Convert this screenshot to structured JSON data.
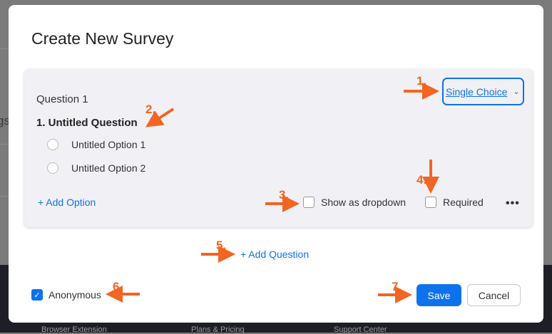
{
  "background": {
    "partial_text": "gs",
    "footer_links": [
      "Browser Extension",
      "Plans & Pricing",
      "Support Center"
    ]
  },
  "modal": {
    "title": "Create New Survey",
    "question": {
      "label": "Question 1",
      "title": "1. Untitled Question",
      "type": "Single Choice",
      "options": [
        "Untitled Option 1",
        "Untitled Option 2"
      ],
      "add_option": "+ Add Option",
      "show_as_dropdown": {
        "label": "Show as dropdown",
        "checked": false
      },
      "required": {
        "label": "Required",
        "checked": false
      },
      "more": "•••"
    },
    "add_question": "+ Add Question",
    "anonymous": {
      "label": "Anonymous",
      "checked": true
    },
    "save": "Save",
    "cancel": "Cancel"
  },
  "annotations": [
    "1.",
    "2.",
    "3.",
    "4.",
    "5.",
    "6.",
    "7."
  ],
  "colors": {
    "accent": "#0e72ed",
    "annotation": "#f26522",
    "overlay": "#7b7b7b",
    "footer": "#1e1f26"
  }
}
